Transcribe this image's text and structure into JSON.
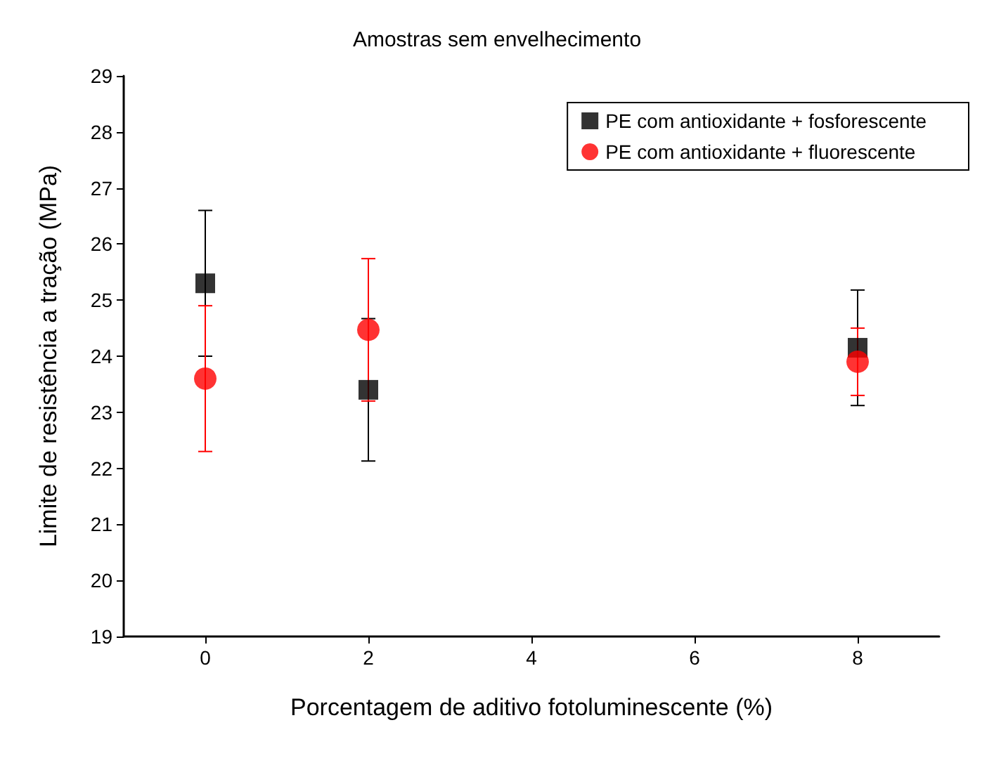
{
  "chart_data": {
    "type": "scatter",
    "title": "Amostras sem envelhecimento",
    "xlabel": "Porcentagem de aditivo fotoluminescente (%)",
    "ylabel": "Limite de resistência a tração (MPa)",
    "x": [
      0,
      2,
      8
    ],
    "xlim": [
      -1,
      9
    ],
    "xticks": [
      0,
      2,
      4,
      6,
      8
    ],
    "ylim": [
      19,
      29
    ],
    "yticks": [
      19,
      20,
      21,
      22,
      23,
      24,
      25,
      26,
      27,
      28,
      29
    ],
    "series": [
      {
        "name": "PE com antioxidante + fosforescente",
        "color": "#000000",
        "marker": "square",
        "values": [
          25.3,
          23.4,
          24.15
        ],
        "errors": [
          1.3,
          1.27,
          1.03
        ]
      },
      {
        "name": "PE com antioxidante + fluorescente",
        "color": "#ff0000",
        "marker": "circle",
        "values": [
          23.6,
          24.47,
          23.9
        ],
        "errors": [
          1.3,
          1.27,
          0.6
        ]
      }
    ],
    "legend": "top right",
    "grid": false
  }
}
